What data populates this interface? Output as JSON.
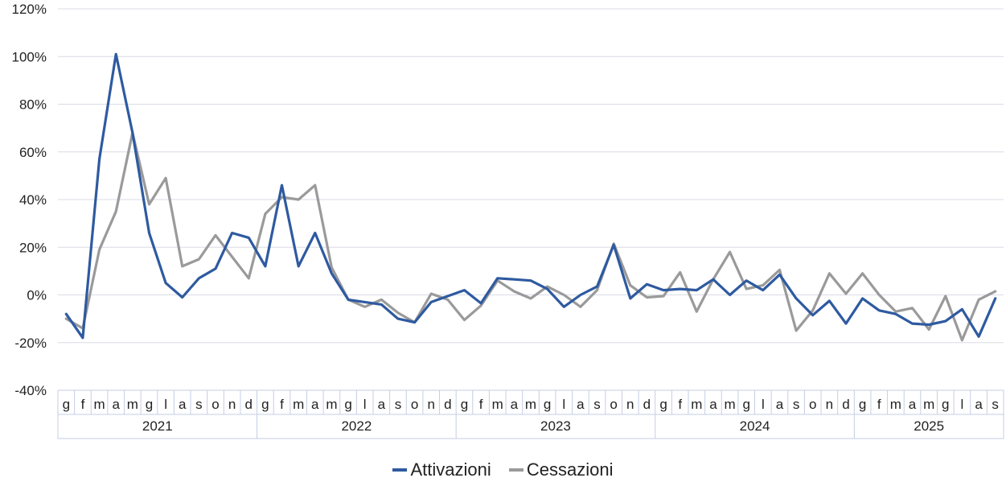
{
  "chart_data": {
    "type": "line",
    "title": "",
    "xlabel": "",
    "ylabel": "",
    "ylim": [
      -40,
      120
    ],
    "y_ticks": [
      -40,
      -20,
      0,
      20,
      40,
      60,
      80,
      100,
      120
    ],
    "y_tick_labels": [
      "-40%",
      "-20%",
      "0%",
      "20%",
      "40%",
      "60%",
      "80%",
      "100%",
      "120%"
    ],
    "grid": "horizontal",
    "legend_position": "bottom",
    "years": [
      {
        "label": "2021",
        "months": [
          "g",
          "f",
          "m",
          "a",
          "m",
          "g",
          "l",
          "a",
          "s",
          "o",
          "n",
          "d"
        ]
      },
      {
        "label": "2022",
        "months": [
          "g",
          "f",
          "m",
          "a",
          "m",
          "g",
          "l",
          "a",
          "s",
          "o",
          "n",
          "d"
        ]
      },
      {
        "label": "2023",
        "months": [
          "g",
          "f",
          "m",
          "a",
          "m",
          "g",
          "l",
          "a",
          "s",
          "o",
          "n",
          "d"
        ]
      },
      {
        "label": "2024",
        "months": [
          "g",
          "f",
          "m",
          "a",
          "m",
          "g",
          "l",
          "a",
          "s",
          "o",
          "n",
          "d"
        ]
      },
      {
        "label": "2025",
        "months": [
          "g",
          "f",
          "m",
          "a",
          "m",
          "g",
          "l",
          "a",
          "s"
        ]
      }
    ],
    "series": [
      {
        "name": "Attivazioni",
        "color": "#2e5aa0",
        "values": [
          -8,
          -18,
          57,
          101,
          68,
          26,
          5,
          -1,
          7,
          11,
          26,
          24,
          12,
          46,
          12,
          26,
          9,
          -2,
          -3,
          -4,
          -10,
          -11.5,
          -3,
          -0.5,
          2,
          -3.5,
          7,
          6.5,
          6,
          2.5,
          -5,
          0,
          3.5,
          21,
          -1.5,
          4.5,
          2,
          2.5,
          2,
          6.5,
          0,
          6,
          2,
          8.5,
          -1.5,
          -8.5,
          -2.5,
          -12,
          -1.5,
          -6.5,
          -8,
          -12,
          -12.5,
          -11,
          -6,
          -17.5,
          -1.5
        ]
      },
      {
        "name": "Cessazioni",
        "color": "#9a9a9a",
        "values": [
          -10,
          -14,
          19,
          35,
          68,
          38,
          49,
          12,
          15,
          25,
          16,
          7,
          34,
          41,
          40,
          46,
          11.5,
          -2,
          -5,
          -2,
          -7.5,
          -11.5,
          0.5,
          -2,
          -10.5,
          -4.5,
          6,
          1.5,
          -1.5,
          3.5,
          0,
          -5,
          2,
          21.5,
          4,
          -1,
          -0.5,
          9.5,
          -7,
          6.5,
          18,
          2.5,
          4,
          10.5,
          -15,
          -6.5,
          9,
          0.5,
          9,
          0,
          -7,
          -5.5,
          -14.5,
          -0.5,
          -19,
          -2,
          1.5
        ]
      }
    ]
  }
}
